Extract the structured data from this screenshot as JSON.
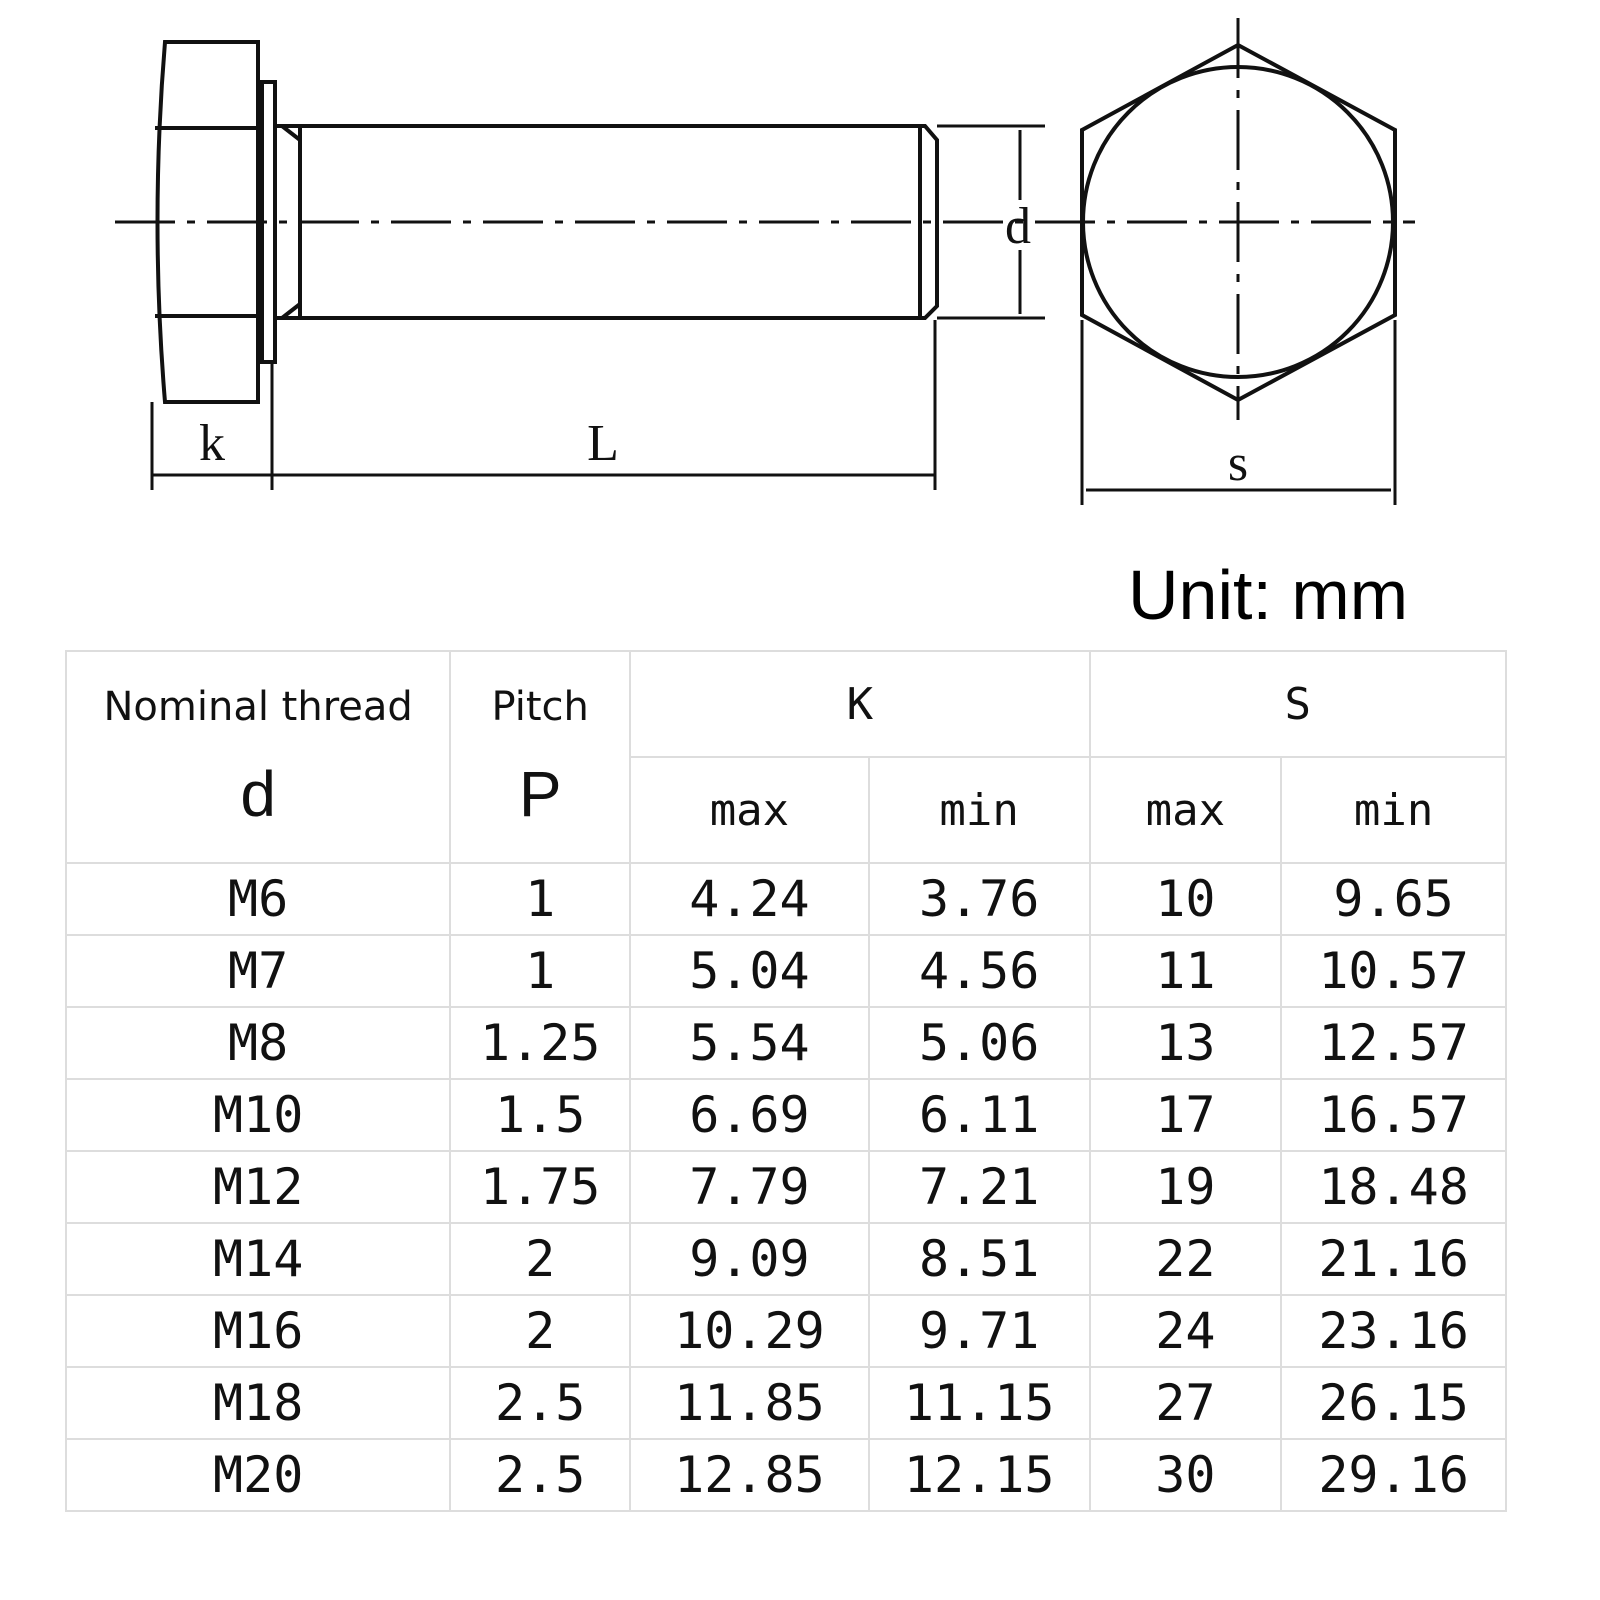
{
  "drawing": {
    "labels": {
      "k": "k",
      "L": "L",
      "d": "d",
      "s": "s"
    }
  },
  "unit": "Unit: mm",
  "table": {
    "header": {
      "nominal": "Nominal thread",
      "d": "d",
      "pitch": "Pitch",
      "P": "P",
      "K": "K",
      "S": "S",
      "max": "max",
      "min": "min"
    },
    "rows": [
      [
        "M6",
        "1",
        "4.24",
        "3.76",
        "10",
        "9.65"
      ],
      [
        "M7",
        "1",
        "5.04",
        "4.56",
        "11",
        "10.57"
      ],
      [
        "M8",
        "1.25",
        "5.54",
        "5.06",
        "13",
        "12.57"
      ],
      [
        "M10",
        "1.5",
        "6.69",
        "6.11",
        "17",
        "16.57"
      ],
      [
        "M12",
        "1.75",
        "7.79",
        "7.21",
        "19",
        "18.48"
      ],
      [
        "M14",
        "2",
        "9.09",
        "8.51",
        "22",
        "21.16"
      ],
      [
        "M16",
        "2",
        "10.29",
        "9.71",
        "24",
        "23.16"
      ],
      [
        "M18",
        "2.5",
        "11.85",
        "11.15",
        "27",
        "26.15"
      ],
      [
        "M20",
        "2.5",
        "12.85",
        "12.15",
        "30",
        "29.16"
      ]
    ]
  }
}
